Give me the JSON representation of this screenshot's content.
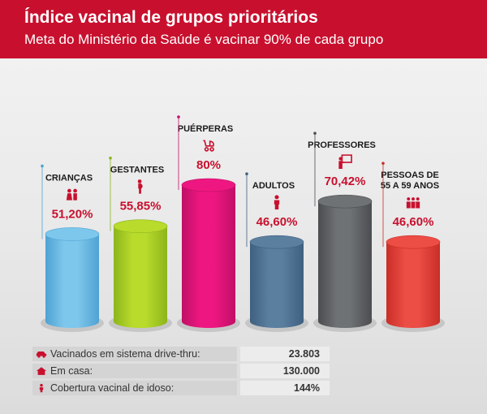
{
  "header": {
    "title": "Índice vacinal de grupos prioritários",
    "subtitle": "Meta do Ministério da Saúde é vacinar 90% de cada grupo"
  },
  "chart_data": {
    "type": "bar",
    "style": "3d-cylinder",
    "title": "Índice vacinal de grupos prioritários",
    "subtitle": "Meta do Ministério da Saúde é vacinar 90% de cada grupo",
    "unit": "%",
    "ylim": [
      0,
      90
    ],
    "categories": [
      {
        "name": "CRIANÇAS",
        "label_lines": [
          "CRIANÇAS"
        ],
        "value": 51.2,
        "value_label": "51,20%",
        "color": "#7ec7ec",
        "color_dark": "#4fa2d3",
        "icon": "children-icon"
      },
      {
        "name": "GESTANTES",
        "label_lines": [
          "GESTANTES"
        ],
        "value": 55.85,
        "value_label": "55,85%",
        "color": "#b8db2c",
        "color_dark": "#8db51c",
        "icon": "pregnant-icon"
      },
      {
        "name": "PUÉRPERAS",
        "label_lines": [
          "PUÉRPERAS"
        ],
        "value": 80,
        "value_label": "80%",
        "color": "#ee1781",
        "color_dark": "#c00f66",
        "icon": "stroller-icon"
      },
      {
        "name": "ADULTOS",
        "label_lines": [
          "ADULTOS"
        ],
        "value": 46.6,
        "value_label": "46,60%",
        "color": "#5b7f9f",
        "color_dark": "#3f6080",
        "icon": "adult-icon"
      },
      {
        "name": "PROFESSORES",
        "label_lines": [
          "PROFESSORES"
        ],
        "value": 70.42,
        "value_label": "70,42%",
        "color": "#6f7275",
        "color_dark": "#4b4d50",
        "icon": "teacher-icon"
      },
      {
        "name": "PESSOAS DE 55 A 59 ANOS",
        "label_lines": [
          "PESSOAS DE",
          "55 A 59 ANOS"
        ],
        "value": 46.6,
        "value_label": "46,60%",
        "color": "#ec4d45",
        "color_dark": "#c92e27",
        "icon": "group-icon"
      }
    ]
  },
  "stats": [
    {
      "icon": "car-icon",
      "label": "Vacinados em sistema drive-thru:",
      "value": "23.803"
    },
    {
      "icon": "house-icon",
      "label": "Em casa:",
      "value": "130.000"
    },
    {
      "icon": "person-icon",
      "label": "Cobertura vacinal de idoso:",
      "value": "144%"
    }
  ],
  "colors": {
    "brand": "#c8102e",
    "value_text": "#c8102e"
  }
}
